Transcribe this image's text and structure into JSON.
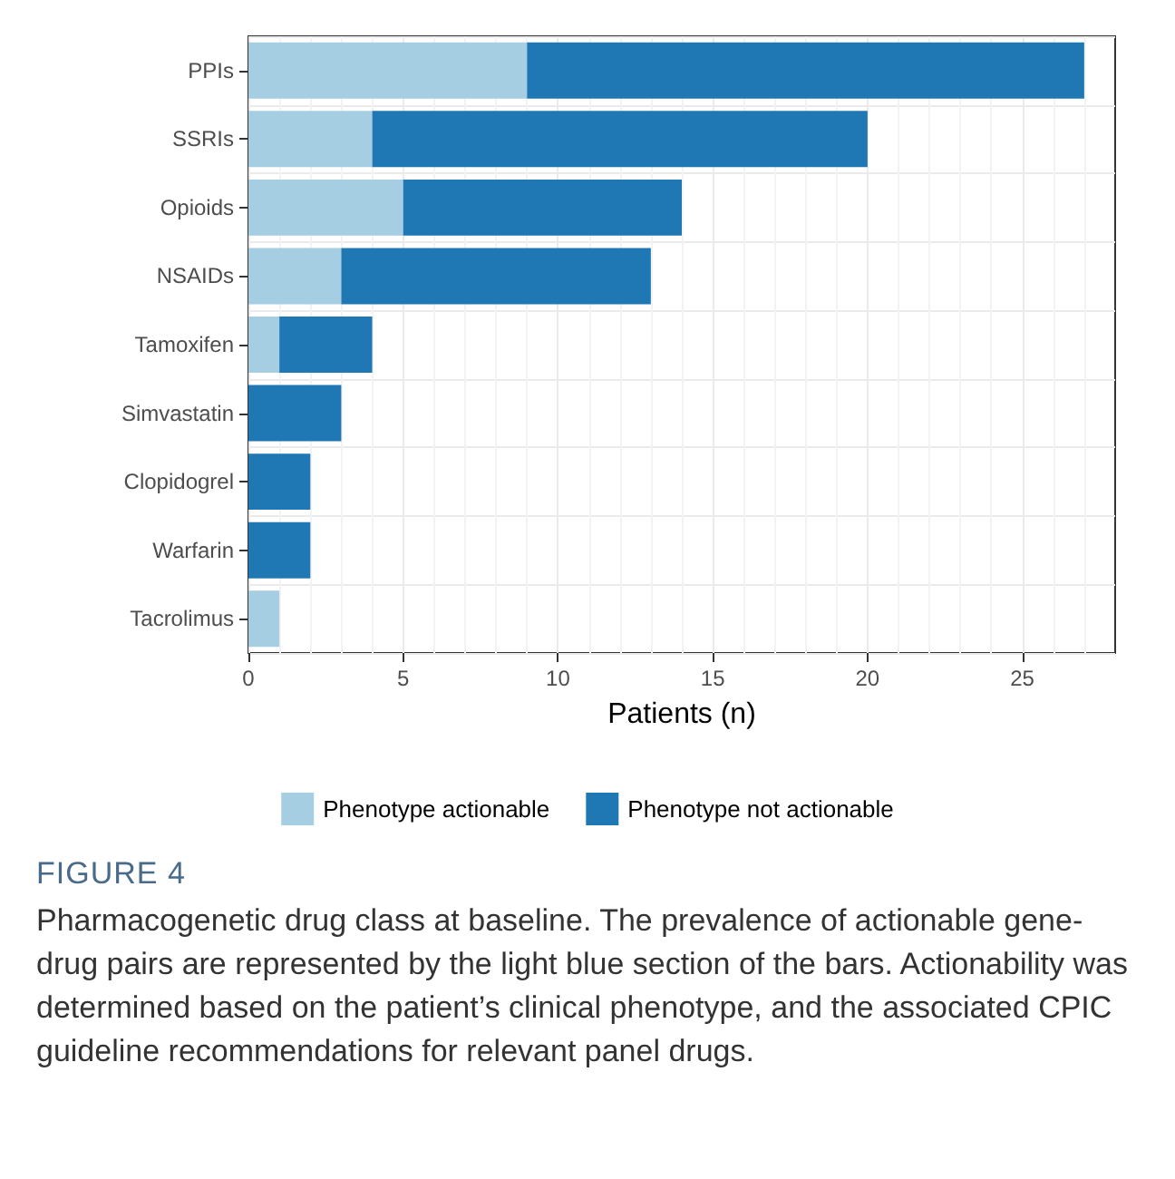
{
  "chart_data": {
    "type": "bar",
    "orientation": "horizontal",
    "stacked": true,
    "categories": [
      "PPIs",
      "SSRIs",
      "Opioids",
      "NSAIDs",
      "Tamoxifen",
      "Simvastatin",
      "Clopidogrel",
      "Warfarin",
      "Tacrolimus"
    ],
    "series": [
      {
        "name": "Phenotype actionable",
        "color": "#a6cee3",
        "values": [
          9,
          4,
          5,
          3,
          1,
          0,
          0,
          0,
          1
        ]
      },
      {
        "name": "Phenotype not actionable",
        "color": "#1f78b4",
        "values": [
          18,
          16,
          9,
          10,
          3,
          3,
          2,
          2,
          0
        ]
      }
    ],
    "xlabel": "Patients (n)",
    "xlim": [
      0,
      28
    ],
    "xticks": [
      0,
      5,
      10,
      15,
      20,
      25
    ],
    "grid": true,
    "legend": "bottom",
    "annotations": [
      "FIGURE 4",
      "Pharmacogenetic drug class at baseline. The prevalence of actionable gene-drug pairs are represented by the light blue section of the bars. Actionability was determined based on the patient’s clinical phenotype, and the associated CPIC guideline recommendations for relevant panel drugs."
    ]
  }
}
